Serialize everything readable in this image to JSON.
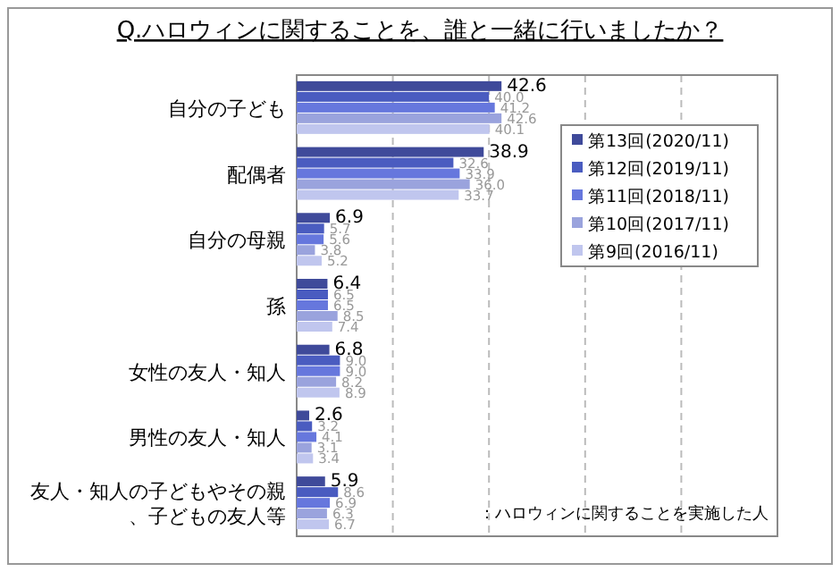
{
  "chart_data": {
    "type": "bar",
    "orientation": "horizontal",
    "title": "Q.ハロウィンに関することを、誰と一緒に行いましたか？",
    "categories": [
      "自分の子ども",
      "配偶者",
      "自分の母親",
      "孫",
      "女性の友人・知人",
      "男性の友人・知人",
      "友人・知人の子どもやその親、子どもの友人等"
    ],
    "series": [
      {
        "name": "第13回(2020/11)",
        "color": "#3f4a9a",
        "values": [
          42.6,
          38.9,
          6.9,
          6.4,
          6.8,
          2.6,
          5.9
        ],
        "value_labels": [
          "42.6",
          "38.9",
          "6.9",
          "6.4",
          "6.8",
          "2.6",
          "5.9"
        ]
      },
      {
        "name": "第12回(2019/11)",
        "color": "#4a5cc0",
        "values": [
          40.0,
          32.6,
          5.7,
          6.5,
          9.0,
          3.2,
          8.6
        ],
        "value_labels": [
          "40.0",
          "32.6",
          "5.7",
          "6.5",
          "9.0",
          "3.2",
          "8.6"
        ]
      },
      {
        "name": "第11回(2018/11)",
        "color": "#6677dd",
        "values": [
          41.2,
          33.9,
          5.6,
          6.5,
          9.0,
          4.1,
          6.9
        ],
        "value_labels": [
          "41.2",
          "33.9",
          "5.6",
          "6.5",
          "9.0",
          "4.1",
          "6.9"
        ]
      },
      {
        "name": "第10回(2017/11)",
        "color": "#9aa3dd",
        "values": [
          42.6,
          36.0,
          3.8,
          8.5,
          8.2,
          3.1,
          6.3
        ],
        "value_labels": [
          "42.6",
          "36.0",
          "3.8",
          "8.5",
          "8.2",
          "3.1",
          "6.3"
        ]
      },
      {
        "name": "第9回(2016/11)",
        "color": "#c0c6ee",
        "values": [
          40.1,
          33.7,
          5.2,
          7.4,
          8.9,
          3.4,
          6.7
        ],
        "value_labels": [
          "40.1",
          "33.7",
          "5.2",
          "7.4",
          "8.9",
          "3.4",
          "6.7"
        ]
      }
    ],
    "xlim": [
      0,
      100
    ],
    "xticks": [
      {
        "value": 0,
        "label": null
      },
      {
        "value": 20,
        "label": null
      },
      {
        "value": 40,
        "label": null
      },
      {
        "value": 60,
        "label": null
      },
      {
        "value": 80,
        "label": null
      },
      {
        "value": 100,
        "label": null
      }
    ],
    "tick_labels": "y",
    "grid": "x",
    "legend": "top right",
    "annotations": [
      "：ハロウィンに関することを実施した人"
    ]
  }
}
